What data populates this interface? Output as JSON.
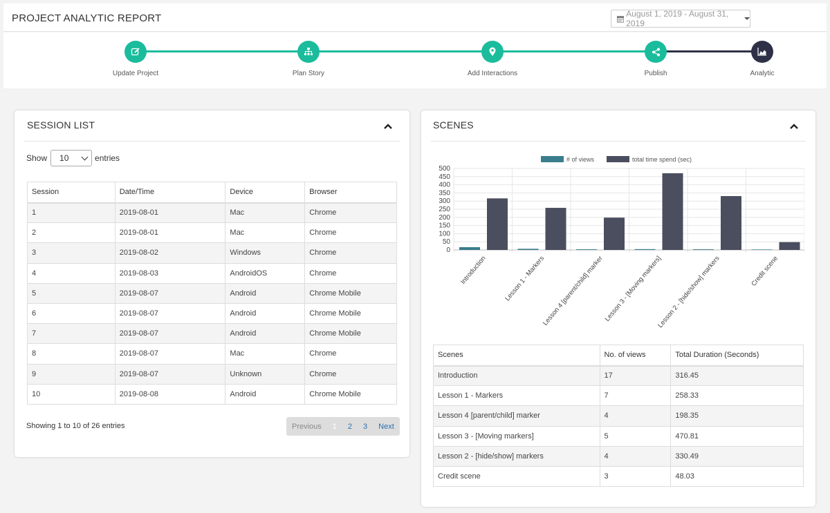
{
  "header": {
    "title": "PROJECT ANALYTIC REPORT",
    "date_range": "August 1, 2019 - August 31, 2019"
  },
  "steps": [
    {
      "label": "Update Project",
      "icon": "edit-icon"
    },
    {
      "label": "Plan Story",
      "icon": "sitemap-icon"
    },
    {
      "label": "Add Interactions",
      "icon": "map-marker-icon"
    },
    {
      "label": "Publish",
      "icon": "share-icon"
    },
    {
      "label": "Analytic",
      "icon": "area-chart-icon"
    }
  ],
  "colors": {
    "accent": "#1abc9c",
    "dark": "#2d3047",
    "views": "#3a7d8c",
    "time": "#4a4e5e"
  },
  "session_list": {
    "title": "SESSION LIST",
    "show_label": "Show",
    "entries_value": "10",
    "entries_label": "entries",
    "columns": [
      "Session",
      "Date/Time",
      "Device",
      "Browser"
    ],
    "rows": [
      [
        "1",
        "2019-08-01",
        "Mac",
        "Chrome"
      ],
      [
        "2",
        "2019-08-01",
        "Mac",
        "Chrome"
      ],
      [
        "3",
        "2019-08-02",
        "Windows",
        "Chrome"
      ],
      [
        "4",
        "2019-08-03",
        "AndroidOS",
        "Chrome"
      ],
      [
        "5",
        "2019-08-07",
        "Android",
        "Chrome Mobile"
      ],
      [
        "6",
        "2019-08-07",
        "Android",
        "Chrome Mobile"
      ],
      [
        "7",
        "2019-08-07",
        "Android",
        "Chrome Mobile"
      ],
      [
        "8",
        "2019-08-07",
        "Mac",
        "Chrome"
      ],
      [
        "9",
        "2019-08-07",
        "Unknown",
        "Chrome"
      ],
      [
        "10",
        "2019-08-08",
        "Android",
        "Chrome Mobile"
      ]
    ],
    "info": "Showing 1 to 10 of 26 entries",
    "pagination": {
      "previous": "Previous",
      "pages": [
        "1",
        "2",
        "3"
      ],
      "current": "1",
      "next": "Next"
    }
  },
  "scenes": {
    "title": "SCENES",
    "columns": [
      "Scenes",
      "No. of views",
      "Total Duration (Seconds)"
    ],
    "rows": [
      [
        "Introduction",
        "17",
        "316.45"
      ],
      [
        "Lesson 1 - Markers",
        "7",
        "258.33"
      ],
      [
        "Lesson 4 [parent/child] marker",
        "4",
        "198.35"
      ],
      [
        "Lesson 3 - [Moving markers]",
        "5",
        "470.81"
      ],
      [
        "Lesson 2 - [hide/show] markers",
        "4",
        "330.49"
      ],
      [
        "Credit scene",
        "3",
        "48.03"
      ]
    ]
  },
  "chart_data": {
    "type": "bar",
    "categories": [
      "Introduction",
      "Lesson 1 - Markers",
      "Lesson 4 [parent/child] marker",
      "Lesson 3 - [Moving markers]",
      "Lesson 2 - [hide/show] markers",
      "Credit scene"
    ],
    "series": [
      {
        "name": "# of views",
        "values": [
          17,
          7,
          4,
          5,
          4,
          3
        ]
      },
      {
        "name": "total time spend (sec)",
        "values": [
          316.45,
          258.33,
          198.35,
          470.81,
          330.49,
          48.03
        ]
      }
    ],
    "ylim": [
      0,
      500
    ],
    "yticks": [
      0,
      50,
      100,
      150,
      200,
      250,
      300,
      350,
      400,
      450,
      500
    ],
    "legend": "top",
    "grid": true
  }
}
